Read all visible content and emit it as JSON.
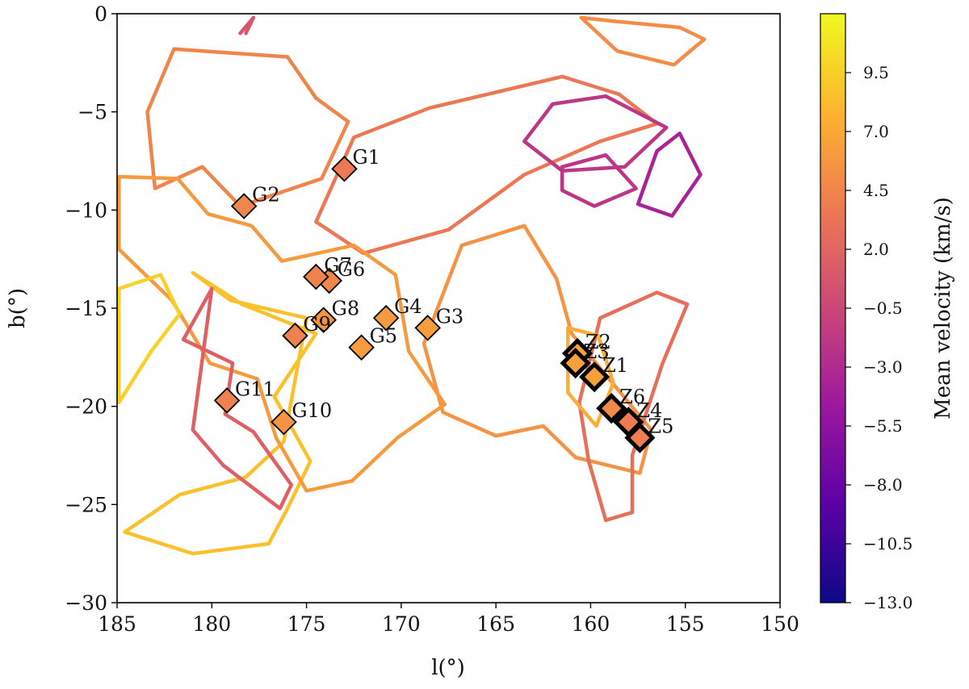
{
  "chart_data": {
    "type": "scatter",
    "title": "",
    "xlabel": "l(°)",
    "ylabel": "b(°)",
    "xlim": [
      185,
      150
    ],
    "ylim": [
      -30,
      0
    ],
    "x_ticks": [
      "185",
      "180",
      "175",
      "170",
      "165",
      "160",
      "155",
      "150"
    ],
    "y_ticks": [
      "0",
      "−5",
      "−10",
      "−15",
      "−20",
      "−25",
      "−30"
    ],
    "x_tick_values": [
      185,
      180,
      175,
      170,
      165,
      160,
      155,
      150
    ],
    "y_tick_values": [
      0,
      -5,
      -10,
      -15,
      -20,
      -25,
      -30
    ],
    "grid": false,
    "colorbar": {
      "label": "Mean velocity (km/s)",
      "min": -13.0,
      "max": 12.0,
      "colormap": "plasma",
      "ticks": [
        "9.5",
        "7.0",
        "4.5",
        "2.0",
        "−0.5",
        "−3.0",
        "−5.5",
        "−8.0",
        "−10.5",
        "−13.0"
      ],
      "tick_values": [
        9.5,
        7.0,
        4.5,
        2.0,
        -0.5,
        -3.0,
        -5.5,
        -8.0,
        -10.5,
        -13.0
      ],
      "stops": [
        "#0d0887",
        "#5c01a6",
        "#9c179e",
        "#cc4778",
        "#ed7953",
        "#fdb42f",
        "#f0f921"
      ]
    },
    "series": [
      {
        "marker": "diamond",
        "edge_color": "#000000",
        "points": [
          {
            "label": "G1",
            "l": 173.0,
            "b": -7.9,
            "v": 3.6
          },
          {
            "label": "G2",
            "l": 178.3,
            "b": -9.8,
            "v": 4.6
          },
          {
            "label": "G3",
            "l": 168.6,
            "b": -16.0,
            "v": 6.2
          },
          {
            "label": "G4",
            "l": 170.8,
            "b": -15.5,
            "v": 6.0
          },
          {
            "label": "G5",
            "l": 172.1,
            "b": -17.0,
            "v": 6.2
          },
          {
            "label": "G6",
            "l": 173.8,
            "b": -13.6,
            "v": 4.6
          },
          {
            "label": "G7",
            "l": 174.5,
            "b": -13.4,
            "v": 4.4
          },
          {
            "label": "G8",
            "l": 174.1,
            "b": -15.6,
            "v": 5.6
          },
          {
            "label": "G9",
            "l": 175.6,
            "b": -16.4,
            "v": 4.2
          },
          {
            "label": "G10",
            "l": 176.2,
            "b": -20.8,
            "v": 5.6
          },
          {
            "label": "G11",
            "l": 179.2,
            "b": -19.7,
            "v": 4.2
          }
        ]
      },
      {
        "marker": "square",
        "edge_color": "#000000",
        "points": [
          {
            "label": "Z1",
            "l": 159.8,
            "b": -18.5,
            "v": 6.5
          },
          {
            "label": "Z2",
            "l": 160.7,
            "b": -17.3,
            "v": 6.6
          },
          {
            "label": "Z3",
            "l": 160.8,
            "b": -17.8,
            "v": 6.4
          },
          {
            "label": "Z4",
            "l": 158.0,
            "b": -20.8,
            "v": 3.8
          },
          {
            "label": "Z5",
            "l": 157.4,
            "b": -21.6,
            "v": 4.0
          },
          {
            "label": "Z6",
            "l": 158.9,
            "b": -20.1,
            "v": 4.8
          }
        ]
      }
    ],
    "contours": [
      {
        "v": 4.5,
        "points": [
          [
            182,
            -1.8
          ],
          [
            176,
            -2.2
          ],
          [
            174.5,
            -4.3
          ],
          [
            172.8,
            -5.5
          ],
          [
            174.2,
            -8.4
          ],
          [
            178.5,
            -9.8
          ],
          [
            180.5,
            -7.8
          ],
          [
            183,
            -8.9
          ],
          [
            183.4,
            -5
          ],
          [
            182,
            -1.8
          ]
        ]
      },
      {
        "v": 0.8,
        "points": [
          [
            178.5,
            -1.0
          ],
          [
            177.8,
            -0.2
          ],
          [
            178.2,
            -1.0
          ]
        ]
      },
      {
        "v": 3.5,
        "points": [
          [
            172.5,
            -6.3
          ],
          [
            168.5,
            -4.8
          ],
          [
            161.5,
            -3.2
          ],
          [
            158.5,
            -4.1
          ],
          [
            156.5,
            -5.6
          ],
          [
            159.5,
            -6.5
          ],
          [
            163.5,
            -8.2
          ],
          [
            167.5,
            -11.0
          ],
          [
            172.0,
            -12.2
          ],
          [
            174.5,
            -10.6
          ],
          [
            172.5,
            -6.3
          ]
        ]
      },
      {
        "v": -1.8,
        "points": [
          [
            163.5,
            -6.5
          ],
          [
            162.0,
            -4.6
          ],
          [
            159.2,
            -4.2
          ],
          [
            156.0,
            -5.8
          ],
          [
            158.2,
            -7.8
          ],
          [
            161.5,
            -8.0
          ],
          [
            163.5,
            -6.5
          ]
        ]
      },
      {
        "v": -3.6,
        "points": [
          [
            156.5,
            -7.0
          ],
          [
            155.3,
            -6.1
          ],
          [
            154.2,
            -8.2
          ],
          [
            155.7,
            -10.3
          ],
          [
            157.5,
            -9.7
          ],
          [
            156.5,
            -7.0
          ]
        ]
      },
      {
        "v": -2.0,
        "points": [
          [
            161.5,
            -7.8
          ],
          [
            159.2,
            -7.2
          ],
          [
            157.6,
            -8.9
          ],
          [
            159.8,
            -9.8
          ],
          [
            161.5,
            -9.0
          ],
          [
            161.5,
            -7.8
          ]
        ]
      },
      {
        "v": 5.5,
        "points": [
          [
            166.8,
            -11.8
          ],
          [
            163.5,
            -10.8
          ],
          [
            161.8,
            -13.5
          ],
          [
            161.0,
            -16.3
          ],
          [
            159.2,
            -18.4
          ],
          [
            156.8,
            -21.2
          ],
          [
            157.4,
            -23.4
          ],
          [
            160.8,
            -22.6
          ],
          [
            162.5,
            -21.0
          ],
          [
            165.0,
            -21.5
          ],
          [
            167.8,
            -20.3
          ],
          [
            168.8,
            -16.8
          ],
          [
            166.8,
            -11.8
          ]
        ]
      },
      {
        "v": 2.8,
        "points": [
          [
            159.5,
            -15.5
          ],
          [
            156.5,
            -14.2
          ],
          [
            154.9,
            -14.8
          ],
          [
            156.2,
            -17.8
          ],
          [
            157.8,
            -22.5
          ],
          [
            157.8,
            -25.4
          ],
          [
            159.2,
            -25.8
          ],
          [
            160.1,
            -22.8
          ],
          [
            160.6,
            -19.8
          ],
          [
            159.5,
            -15.5
          ]
        ]
      },
      {
        "v": 8.6,
        "points": [
          [
            181.0,
            -13.2
          ],
          [
            179.0,
            -14.6
          ],
          [
            175.0,
            -15.5
          ],
          [
            176.2,
            -21.8
          ],
          [
            178.2,
            -23.6
          ],
          [
            181.7,
            -24.5
          ],
          [
            184.6,
            -26.4
          ],
          [
            181.0,
            -27.5
          ],
          [
            177.0,
            -27.0
          ],
          [
            176.0,
            -25.2
          ],
          [
            174.8,
            -22.8
          ],
          [
            176.7,
            -19.5
          ],
          [
            174.5,
            -16.3
          ],
          [
            178.4,
            -14.8
          ],
          [
            181.0,
            -13.2
          ]
        ]
      },
      {
        "v": 6.0,
        "points": [
          [
            184.9,
            -8.3
          ],
          [
            181.8,
            -8.4
          ],
          [
            180.2,
            -10.2
          ],
          [
            177.9,
            -10.8
          ],
          [
            176.3,
            -12.6
          ],
          [
            172.5,
            -11.8
          ],
          [
            170.3,
            -13.3
          ],
          [
            169.6,
            -17.2
          ],
          [
            167.7,
            -19.9
          ],
          [
            170.2,
            -21.6
          ],
          [
            172.6,
            -23.8
          ],
          [
            175.0,
            -24.3
          ],
          [
            176.6,
            -21.6
          ],
          [
            177.6,
            -18.6
          ],
          [
            180.1,
            -17.8
          ],
          [
            182.1,
            -14.6
          ],
          [
            184.9,
            -12.0
          ],
          [
            184.9,
            -8.3
          ]
        ]
      },
      {
        "v": 1.6,
        "points": [
          [
            180.0,
            -14.0
          ],
          [
            181.5,
            -16.6
          ],
          [
            178.9,
            -17.8
          ],
          [
            179.3,
            -20.4
          ],
          [
            177.8,
            -21.3
          ],
          [
            175.8,
            -24.0
          ],
          [
            176.4,
            -25.2
          ],
          [
            179.4,
            -23.0
          ],
          [
            181.0,
            -21.2
          ],
          [
            180.0,
            -14.0
          ]
        ]
      },
      {
        "v": 9.6,
        "points": [
          [
            184.9,
            -14.0
          ],
          [
            182.7,
            -13.3
          ],
          [
            181.7,
            -15.3
          ],
          [
            183.2,
            -17.2
          ],
          [
            184.9,
            -19.8
          ],
          [
            184.9,
            -14.0
          ]
        ]
      },
      {
        "v": 5.0,
        "points": [
          [
            160.5,
            -0.2
          ],
          [
            158.6,
            -0.4
          ],
          [
            155.3,
            -0.7
          ],
          [
            154.0,
            -1.3
          ],
          [
            155.6,
            -2.6
          ],
          [
            158.6,
            -1.9
          ],
          [
            160.5,
            -0.2
          ]
        ]
      },
      {
        "v": 7.4,
        "points": [
          [
            161.2,
            -16.0
          ],
          [
            159.6,
            -16.4
          ],
          [
            158.8,
            -18.8
          ],
          [
            159.7,
            -21.0
          ],
          [
            161.2,
            -19.3
          ],
          [
            161.2,
            -16.0
          ]
        ]
      }
    ]
  }
}
